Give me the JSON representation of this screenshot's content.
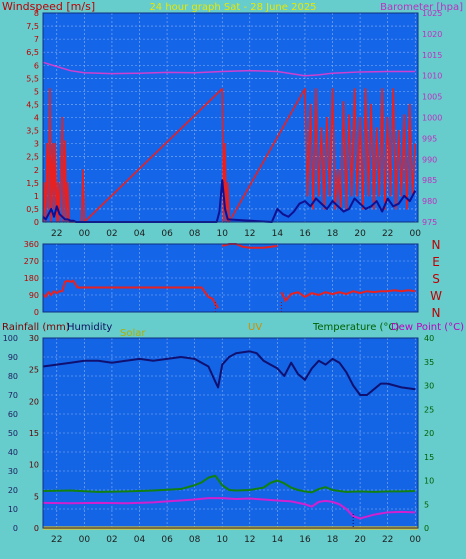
{
  "colors": {
    "background": "#66CCCC",
    "plot_top": "#1565E8",
    "plot_bottom": "#1464E6",
    "grid": "#8CB4F0",
    "wind": "#E82020",
    "gust_avg": "#101090",
    "barometer": "#D040D0",
    "direction": "#E82020",
    "humidity": "#101070",
    "temperature": "#108010",
    "dew_point": "#D020D0",
    "rain": "#FFD000",
    "uv": "#D09000"
  },
  "chart_data": [
    {
      "type": "line",
      "title": "24 hour graph Sat - 28 June 2025",
      "ylabel": "Windspeed [m/s]",
      "y2label": "Barometer [hpa]",
      "x_ticks": [
        "22",
        "00",
        "02",
        "04",
        "06",
        "08",
        "10",
        "12",
        "14",
        "16",
        "18",
        "20",
        "22",
        "00"
      ],
      "y_ticks": [
        "0",
        "0,5",
        "1",
        "1,5",
        "2",
        "2,5",
        "3",
        "3,5",
        "4",
        "4,5",
        "5",
        "5,5",
        "6",
        "6,5",
        "7",
        "7,5",
        "8"
      ],
      "y2_ticks": [
        "975",
        "980",
        "985",
        "990",
        "995",
        "1000",
        "1005",
        "1010",
        "1015",
        "1020",
        "1025"
      ],
      "ylim": [
        0,
        8
      ],
      "y2lim": [
        975,
        1025
      ],
      "xlim": [
        -3,
        24.2
      ],
      "grid": true,
      "series": [
        {
          "name": "Windspeed",
          "axis": "left",
          "x": [
            -3.0,
            -2.9,
            -2.8,
            -2.7,
            -2.6,
            -2.5,
            -2.4,
            -2.3,
            -2.2,
            -2.1,
            -2.0,
            -1.9,
            -1.8,
            -1.6,
            -1.5,
            -1.4,
            -1.3,
            -1.2,
            -1.1,
            -0.9,
            -0.8,
            -0.6,
            -0.4,
            -0.3,
            -0.2,
            -0.1,
            0.0,
            10.0,
            10.1,
            10.2,
            10.3,
            10.4,
            10.5,
            16.0,
            16.2,
            16.4,
            16.6,
            16.8,
            17.0,
            17.2,
            17.4,
            17.6,
            17.8,
            18.0,
            18.2,
            18.4,
            18.6,
            18.8,
            19.0,
            19.2,
            19.4,
            19.6,
            19.8,
            20.0,
            20.2,
            20.4,
            20.6,
            20.8,
            21.0,
            21.2,
            21.4,
            21.6,
            21.8,
            22.0,
            22.2,
            22.4,
            22.6,
            22.8,
            23.0,
            23.2,
            23.4,
            23.6,
            23.8,
            24.0
          ],
          "values": [
            0,
            1.5,
            0,
            3,
            0.5,
            5.1,
            0,
            3,
            0.5,
            3,
            0,
            1.5,
            0,
            4,
            0,
            3.1,
            0,
            1.5,
            0,
            0,
            0,
            0,
            0,
            0,
            0,
            2,
            0,
            5.1,
            0,
            3,
            0,
            1.5,
            0,
            5.1,
            1,
            4.5,
            0.5,
            5.1,
            1,
            3.6,
            0.5,
            4,
            1,
            5.1,
            0.5,
            2,
            0.5,
            4.6,
            0.5,
            4.1,
            1,
            5.1,
            1,
            4,
            0.5,
            5.1,
            1,
            4.5,
            0.5,
            3.6,
            1,
            5.1,
            0.5,
            4,
            1,
            5.1,
            0.5,
            3.5,
            1,
            4.1,
            0.5,
            4.5,
            1,
            3
          ]
        },
        {
          "name": "Windspeed average",
          "axis": "left",
          "x": [
            -3.0,
            -2.8,
            -2.6,
            -2.4,
            -2.2,
            -2.0,
            -1.8,
            -1.6,
            -1.4,
            -1.2,
            -1.0,
            -0.8,
            -0.6,
            -0.4,
            -0.2,
            0.0,
            0.2,
            9.6,
            9.8,
            10.0,
            10.2,
            10.4,
            13.6,
            14.0,
            14.4,
            14.8,
            15.2,
            15.6,
            16.0,
            16.4,
            16.8,
            17.2,
            17.6,
            18.0,
            18.4,
            18.8,
            19.2,
            19.6,
            20.0,
            20.4,
            20.8,
            21.2,
            21.6,
            22.0,
            22.4,
            22.8,
            23.2,
            23.6,
            24.0
          ],
          "values": [
            0.2,
            0.1,
            0.3,
            0.5,
            0.2,
            0.6,
            0.3,
            0.2,
            0.1,
            0.1,
            0.05,
            0.05,
            0.0,
            0.0,
            0.0,
            0.0,
            0.0,
            0.0,
            0.4,
            1.6,
            0.5,
            0.1,
            0.0,
            0.5,
            0.3,
            0.2,
            0.4,
            0.7,
            0.8,
            0.6,
            0.9,
            0.7,
            0.5,
            0.8,
            0.6,
            0.4,
            0.5,
            0.9,
            0.7,
            0.5,
            0.6,
            0.8,
            0.4,
            0.9,
            0.6,
            0.7,
            1.0,
            0.8,
            1.2
          ]
        },
        {
          "name": "Barometer",
          "axis": "right",
          "x": [
            -3.0,
            -2.0,
            -1.0,
            0.0,
            2.0,
            4.0,
            6.0,
            8.0,
            10.0,
            12.0,
            14.0,
            15.0,
            16.0,
            17.0,
            18.0,
            20.0,
            22.0,
            24.0
          ],
          "values": [
            1013.2,
            1012.2,
            1011.2,
            1010.7,
            1010.5,
            1010.6,
            1010.8,
            1010.7,
            1011.0,
            1011.2,
            1011.0,
            1010.5,
            1010.0,
            1010.2,
            1010.6,
            1010.9,
            1011.0,
            1011.0
          ]
        }
      ]
    },
    {
      "type": "scatter",
      "ylabel_ticks": [
        "N",
        "W",
        "S",
        "E",
        "N"
      ],
      "y_ticks": [
        "0",
        "90",
        "180",
        "270",
        "360"
      ],
      "ylim": [
        0,
        360
      ],
      "xlim": [
        -3,
        24.2
      ],
      "grid": true,
      "series": [
        {
          "name": "Wind direction",
          "x": [
            -3.0,
            -2.8,
            -2.6,
            -2.4,
            -2.2,
            -2.0,
            -1.8,
            -1.6,
            -1.4,
            -1.2,
            -1.0,
            -0.8,
            -0.5,
            0.0,
            0.5,
            1.0,
            2.0,
            4.0,
            6.0,
            8.0,
            8.5,
            9.0,
            9.3,
            9.5,
            9.7,
            10.0,
            10.3,
            10.5,
            11.0,
            11.5,
            12.0,
            12.5,
            13.0,
            13.5,
            14.0,
            14.3,
            14.6,
            15.0,
            15.5,
            16.0,
            16.5,
            17.0,
            17.5,
            18.0,
            18.5,
            19.0,
            19.5,
            20.0,
            20.5,
            21.0,
            21.5,
            22.0,
            22.5,
            23.0,
            23.5,
            24.0
          ],
          "values": [
            95,
            80,
            105,
            90,
            110,
            100,
            110,
            110,
            160,
            165,
            160,
            165,
            130,
            130,
            130,
            130,
            130,
            130,
            130,
            130,
            130,
            80,
            70,
            45,
            20,
            350,
            355,
            360,
            360,
            345,
            340,
            340,
            340,
            345,
            350,
            105,
            60,
            95,
            105,
            80,
            100,
            90,
            105,
            95,
            105,
            95,
            110,
            100,
            110,
            105,
            110,
            110,
            115,
            110,
            115,
            110
          ]
        }
      ]
    },
    {
      "type": "line",
      "ylabel": "Rainfall (mm)",
      "labels": [
        "Humidity",
        "Solar",
        "UV",
        "Temperature (°C)",
        "Dew Point (°C)"
      ],
      "x_ticks": [
        "22",
        "00",
        "02",
        "04",
        "06",
        "08",
        "10",
        "12",
        "14",
        "16",
        "18",
        "20",
        "22",
        "00"
      ],
      "y_ticks_left_outer": [
        "0",
        "10",
        "20",
        "30",
        "40",
        "50",
        "60",
        "70",
        "80",
        "90",
        "100"
      ],
      "y_ticks_left_inner": [
        "0",
        "5",
        "10",
        "15",
        "20",
        "25",
        "30"
      ],
      "y_ticks_right": [
        "0",
        "5",
        "10",
        "15",
        "20",
        "25",
        "30",
        "35",
        "40"
      ],
      "ylim": [
        0,
        100
      ],
      "y2lim": [
        0,
        40
      ],
      "xlim": [
        -3,
        24.2
      ],
      "grid": true,
      "series": [
        {
          "name": "Humidity",
          "axis": "left",
          "x": [
            -3.0,
            -2.0,
            -1.0,
            0.0,
            1.0,
            2.0,
            3.0,
            4.0,
            5.0,
            6.0,
            7.0,
            8.0,
            8.5,
            9.0,
            9.5,
            9.7,
            10.0,
            10.5,
            11.0,
            12.0,
            12.5,
            13.0,
            13.5,
            14.0,
            14.5,
            15.0,
            15.5,
            16.0,
            16.5,
            17.0,
            17.5,
            18.0,
            18.5,
            19.0,
            19.5,
            20.0,
            20.5,
            21.0,
            21.5,
            22.0,
            23.0,
            24.0
          ],
          "values": [
            85,
            86,
            87,
            88,
            88,
            87,
            88,
            89,
            88,
            89,
            90,
            89,
            87,
            85,
            77,
            74,
            86,
            90,
            92,
            93,
            92,
            88,
            86,
            84,
            80,
            87,
            81,
            78,
            84,
            88,
            86,
            89,
            87,
            82,
            75,
            70,
            70,
            73,
            76,
            76,
            74,
            73
          ]
        },
        {
          "name": "Temperature",
          "axis": "right",
          "x": [
            -3.0,
            -1.0,
            1.0,
            3.0,
            5.0,
            7.0,
            8.0,
            8.5,
            9.0,
            9.5,
            10.0,
            10.5,
            11.0,
            12.0,
            13.0,
            13.5,
            14.0,
            14.5,
            15.0,
            15.5,
            16.0,
            16.5,
            17.0,
            17.5,
            18.0,
            18.5,
            19.0,
            20.0,
            21.0,
            22.0,
            23.0,
            24.0
          ],
          "values": [
            7.8,
            7.9,
            7.6,
            7.7,
            7.9,
            8.2,
            9.0,
            9.6,
            10.6,
            11.0,
            9.0,
            8.0,
            7.9,
            8.0,
            8.5,
            9.5,
            10.0,
            9.4,
            8.5,
            8.0,
            7.7,
            7.5,
            8.2,
            8.6,
            8.0,
            7.8,
            7.6,
            7.7,
            7.6,
            7.7,
            7.7,
            7.8
          ]
        },
        {
          "name": "Dew Point",
          "axis": "right",
          "x": [
            -3.0,
            -1.0,
            1.0,
            3.0,
            5.0,
            6.0,
            7.0,
            8.0,
            9.0,
            10.0,
            11.0,
            12.0,
            13.0,
            14.0,
            15.0,
            16.0,
            16.5,
            17.0,
            17.5,
            18.0,
            18.5,
            19.0,
            19.5,
            20.0,
            21.0,
            22.0,
            23.0,
            24.0
          ],
          "values": [
            5.3,
            5.2,
            5.3,
            5.2,
            5.4,
            5.6,
            5.8,
            6.0,
            6.3,
            6.3,
            6.1,
            6.2,
            6.0,
            5.8,
            5.6,
            5.0,
            4.5,
            5.5,
            5.7,
            5.5,
            5.0,
            4.0,
            2.5,
            2.0,
            2.8,
            3.3,
            3.4,
            3.3
          ]
        },
        {
          "name": "Rainfall",
          "axis": "left",
          "x": [
            -3.0,
            24.2
          ],
          "values": [
            0,
            0
          ]
        },
        {
          "name": "Solar",
          "axis": "left",
          "x": [
            -3.0,
            24.2
          ],
          "values": [
            0,
            0
          ]
        },
        {
          "name": "UV",
          "axis": "left",
          "x": [
            -3.0,
            24.2
          ],
          "values": [
            0,
            0
          ]
        }
      ]
    }
  ]
}
